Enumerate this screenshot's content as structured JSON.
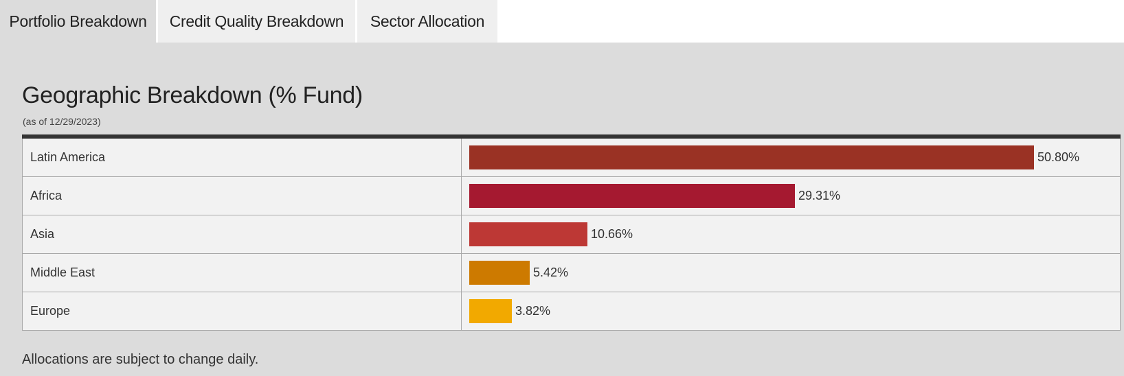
{
  "tabs": [
    {
      "label": "Portfolio Breakdown",
      "active": true
    },
    {
      "label": "Credit Quality Breakdown",
      "active": false
    },
    {
      "label": "Sector Allocation",
      "active": false
    }
  ],
  "section": {
    "title": "Geographic Breakdown (% Fund)",
    "as_of": "(as of 12/29/2023)"
  },
  "chart_data": {
    "type": "bar",
    "orientation": "horizontal",
    "title": "Geographic Breakdown (% Fund)",
    "categories": [
      "Latin America",
      "Africa",
      "Asia",
      "Middle East",
      "Europe"
    ],
    "values": [
      50.8,
      29.31,
      10.66,
      5.42,
      3.82
    ],
    "value_labels": [
      "50.80%",
      "29.31%",
      "10.66%",
      "5.42%",
      "3.82%"
    ],
    "colors": [
      "#9a3224",
      "#a51930",
      "#bd3835",
      "#cd7a00",
      "#f2a900"
    ],
    "xlim": [
      0,
      50.8
    ],
    "xlabel": "",
    "ylabel": ""
  },
  "footnote": "Allocations are subject to change daily."
}
